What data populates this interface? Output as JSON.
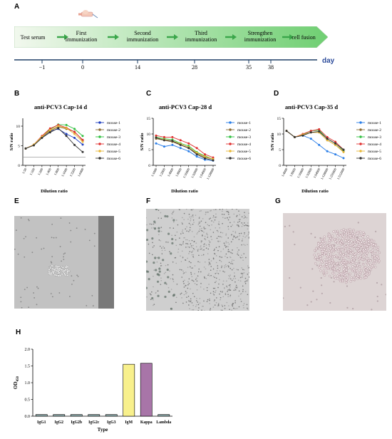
{
  "panel_labels": {
    "A": "A",
    "B": "B",
    "C": "C",
    "D": "D",
    "E": "E",
    "F": "F",
    "G": "G",
    "H": "H"
  },
  "timeline": {
    "steps": [
      "Test serum",
      "First immunization",
      "Second immunization",
      "Third immunization",
      "Strengthen immunization",
      "cell fusion"
    ],
    "step_lines": [
      [
        "Test serum"
      ],
      [
        "First",
        "immunization"
      ],
      [
        "Second",
        "immunization"
      ],
      [
        "Third",
        "immunization"
      ],
      [
        "Strengthen",
        "immunization"
      ],
      [
        "cell fusion"
      ]
    ],
    "ticks": [
      "−1",
      "0",
      "14",
      "28",
      "35",
      "38"
    ],
    "axis_label": "day",
    "colors": {
      "arrow": "#3aa64a",
      "box_from": "#f2f8ee",
      "box_to": "#6fcf72",
      "axis": "#1f3f66",
      "axis_label": "#2b4a9a"
    }
  },
  "photos": [
    {
      "name": "micrograph-E",
      "tone": "#c2c2c2"
    },
    {
      "name": "micrograph-F",
      "tone": "#cfcfcf"
    },
    {
      "name": "micrograph-G",
      "tone": "#ddd4d4"
    }
  ],
  "chart_data": [
    {
      "id": "B",
      "type": "line",
      "title": "anti-PCV3 Cap-14 d",
      "xlabel": "Dilution ratio",
      "ylabel": "S/N ratio",
      "categories": [
        "1:50",
        "1:100",
        "1:200",
        "1:400",
        "1:800",
        "1:1600",
        "1:3200",
        "1:6400"
      ],
      "ylim": [
        0,
        12
      ],
      "yticks": [
        0,
        5,
        10
      ],
      "threshold": 2.1,
      "legend_position": "right",
      "series": [
        {
          "name": "mouse-1",
          "color": "#1f3fbf",
          "marker": "circle",
          "values": [
            4.3,
            5.2,
            7.1,
            8.7,
            9.3,
            8.0,
            7.0,
            5.3
          ]
        },
        {
          "name": "mouse-2",
          "color": "#8b6a30",
          "marker": "circle",
          "values": [
            4.3,
            5.2,
            7.2,
            8.8,
            9.8,
            9.3,
            8.6,
            6.3
          ]
        },
        {
          "name": "mouse-3",
          "color": "#2fbf3f",
          "marker": "circle",
          "values": [
            4.3,
            5.2,
            7.3,
            9.2,
            10.4,
            10.3,
            9.3,
            7.5
          ]
        },
        {
          "name": "mouse-4",
          "color": "#e03030",
          "marker": "circle",
          "values": [
            4.3,
            5.3,
            7.5,
            9.4,
            10.3,
            9.6,
            8.5,
            6.5
          ]
        },
        {
          "name": "mouse-5",
          "color": "#e8b83a",
          "marker": "circle",
          "values": [
            4.3,
            5.3,
            7.3,
            9.0,
            10.0,
            9.5,
            8.0,
            6.0
          ]
        },
        {
          "name": "mouse-6",
          "color": "#333333",
          "marker": "circle",
          "values": [
            4.3,
            5.1,
            7.0,
            8.4,
            9.5,
            7.5,
            5.2,
            3.4
          ]
        }
      ]
    },
    {
      "id": "C",
      "type": "line",
      "title": "anti-PCV3 Cap-28 d",
      "xlabel": "Dilution ratio",
      "ylabel": "S/N ratio",
      "categories": [
        "1:1000",
        "1:2000",
        "1:4000",
        "1:8000",
        "1:16000",
        "1:32000",
        "1:64000",
        "1:128000"
      ],
      "ylim": [
        0,
        15
      ],
      "yticks": [
        0,
        5,
        10,
        15
      ],
      "legend_position": "right",
      "series": [
        {
          "name": "mouse-1",
          "color": "#2a7ee8",
          "marker": "circle",
          "values": [
            7.0,
            6.0,
            6.5,
            5.5,
            4.5,
            2.8,
            1.8,
            1.5
          ]
        },
        {
          "name": "mouse-2",
          "color": "#8b6a30",
          "marker": "circle",
          "values": [
            8.5,
            8.0,
            7.5,
            6.5,
            5.5,
            3.8,
            2.5,
            2.0
          ]
        },
        {
          "name": "mouse-3",
          "color": "#2fbf3f",
          "marker": "circle",
          "values": [
            9.0,
            8.5,
            8.2,
            7.0,
            6.2,
            4.2,
            3.0,
            2.0
          ]
        },
        {
          "name": "mouse-4",
          "color": "#e03030",
          "marker": "circle",
          "values": [
            9.5,
            9.0,
            9.0,
            8.0,
            7.0,
            5.5,
            3.5,
            2.5
          ]
        },
        {
          "name": "mouse-5",
          "color": "#e8b83a",
          "marker": "circle",
          "values": [
            8.8,
            8.2,
            7.8,
            6.8,
            5.8,
            4.0,
            2.8,
            2.0
          ]
        },
        {
          "name": "mouse-6",
          "color": "#333333",
          "marker": "circle",
          "values": [
            8.8,
            8.0,
            7.8,
            6.5,
            5.5,
            3.5,
            2.2,
            1.6
          ]
        }
      ]
    },
    {
      "id": "D",
      "type": "line",
      "title": "anti-PCV3 Cap-35 d",
      "xlabel": "Dilution ratio",
      "ylabel": "S/N ratio",
      "categories": [
        "1:4000",
        "1:8000",
        "1:16000",
        "1:32000",
        "1:64000",
        "1:128000",
        "1:256000",
        "1:512000"
      ],
      "ylim": [
        0,
        15
      ],
      "yticks": [
        0,
        5,
        10,
        15
      ],
      "legend_position": "right",
      "series": [
        {
          "name": "mouse-1",
          "color": "#2a7ee8",
          "marker": "circle",
          "values": [
            11.0,
            9.0,
            9.5,
            8.5,
            6.5,
            4.5,
            3.5,
            2.3
          ]
        },
        {
          "name": "mouse-2",
          "color": "#8b6a30",
          "marker": "circle",
          "values": [
            11.0,
            9.0,
            9.8,
            10.5,
            10.5,
            8.0,
            6.5,
            4.5
          ]
        },
        {
          "name": "mouse-3",
          "color": "#2fbf3f",
          "marker": "circle",
          "values": [
            11.0,
            9.0,
            9.8,
            11.0,
            11.2,
            8.5,
            7.0,
            4.8
          ]
        },
        {
          "name": "mouse-4",
          "color": "#e03030",
          "marker": "circle",
          "values": [
            11.0,
            9.0,
            10.0,
            11.0,
            11.5,
            9.0,
            7.5,
            5.0
          ]
        },
        {
          "name": "mouse-5",
          "color": "#e8b83a",
          "marker": "circle",
          "values": [
            11.0,
            9.0,
            9.8,
            10.5,
            10.5,
            8.0,
            6.5,
            4.2
          ]
        },
        {
          "name": "mouse-6",
          "color": "#333333",
          "marker": "circle",
          "values": [
            11.0,
            9.0,
            9.5,
            10.5,
            10.8,
            8.5,
            7.0,
            5.0
          ]
        }
      ]
    },
    {
      "id": "H",
      "type": "bar",
      "title": "",
      "xlabel": "Type",
      "ylabel": "OD",
      "ylabel_sub": "450",
      "categories": [
        "IgG1",
        "IgG2",
        "IgG2b",
        "IgG2c",
        "IgG3",
        "IgM",
        "Kappa",
        "Lambda"
      ],
      "values": [
        0.05,
        0.05,
        0.05,
        0.05,
        0.05,
        1.55,
        1.58,
        0.05
      ],
      "colors": [
        "#8aa6a6",
        "#8aa6a6",
        "#8aa6a6",
        "#8aa6a6",
        "#8aa6a6",
        "#f8f08c",
        "#a875a8",
        "#8aa6a6"
      ],
      "ylim": [
        0,
        2.0
      ],
      "yticks": [
        "0.0",
        "0.5",
        "1.0",
        "1.5",
        "2.0"
      ]
    }
  ]
}
